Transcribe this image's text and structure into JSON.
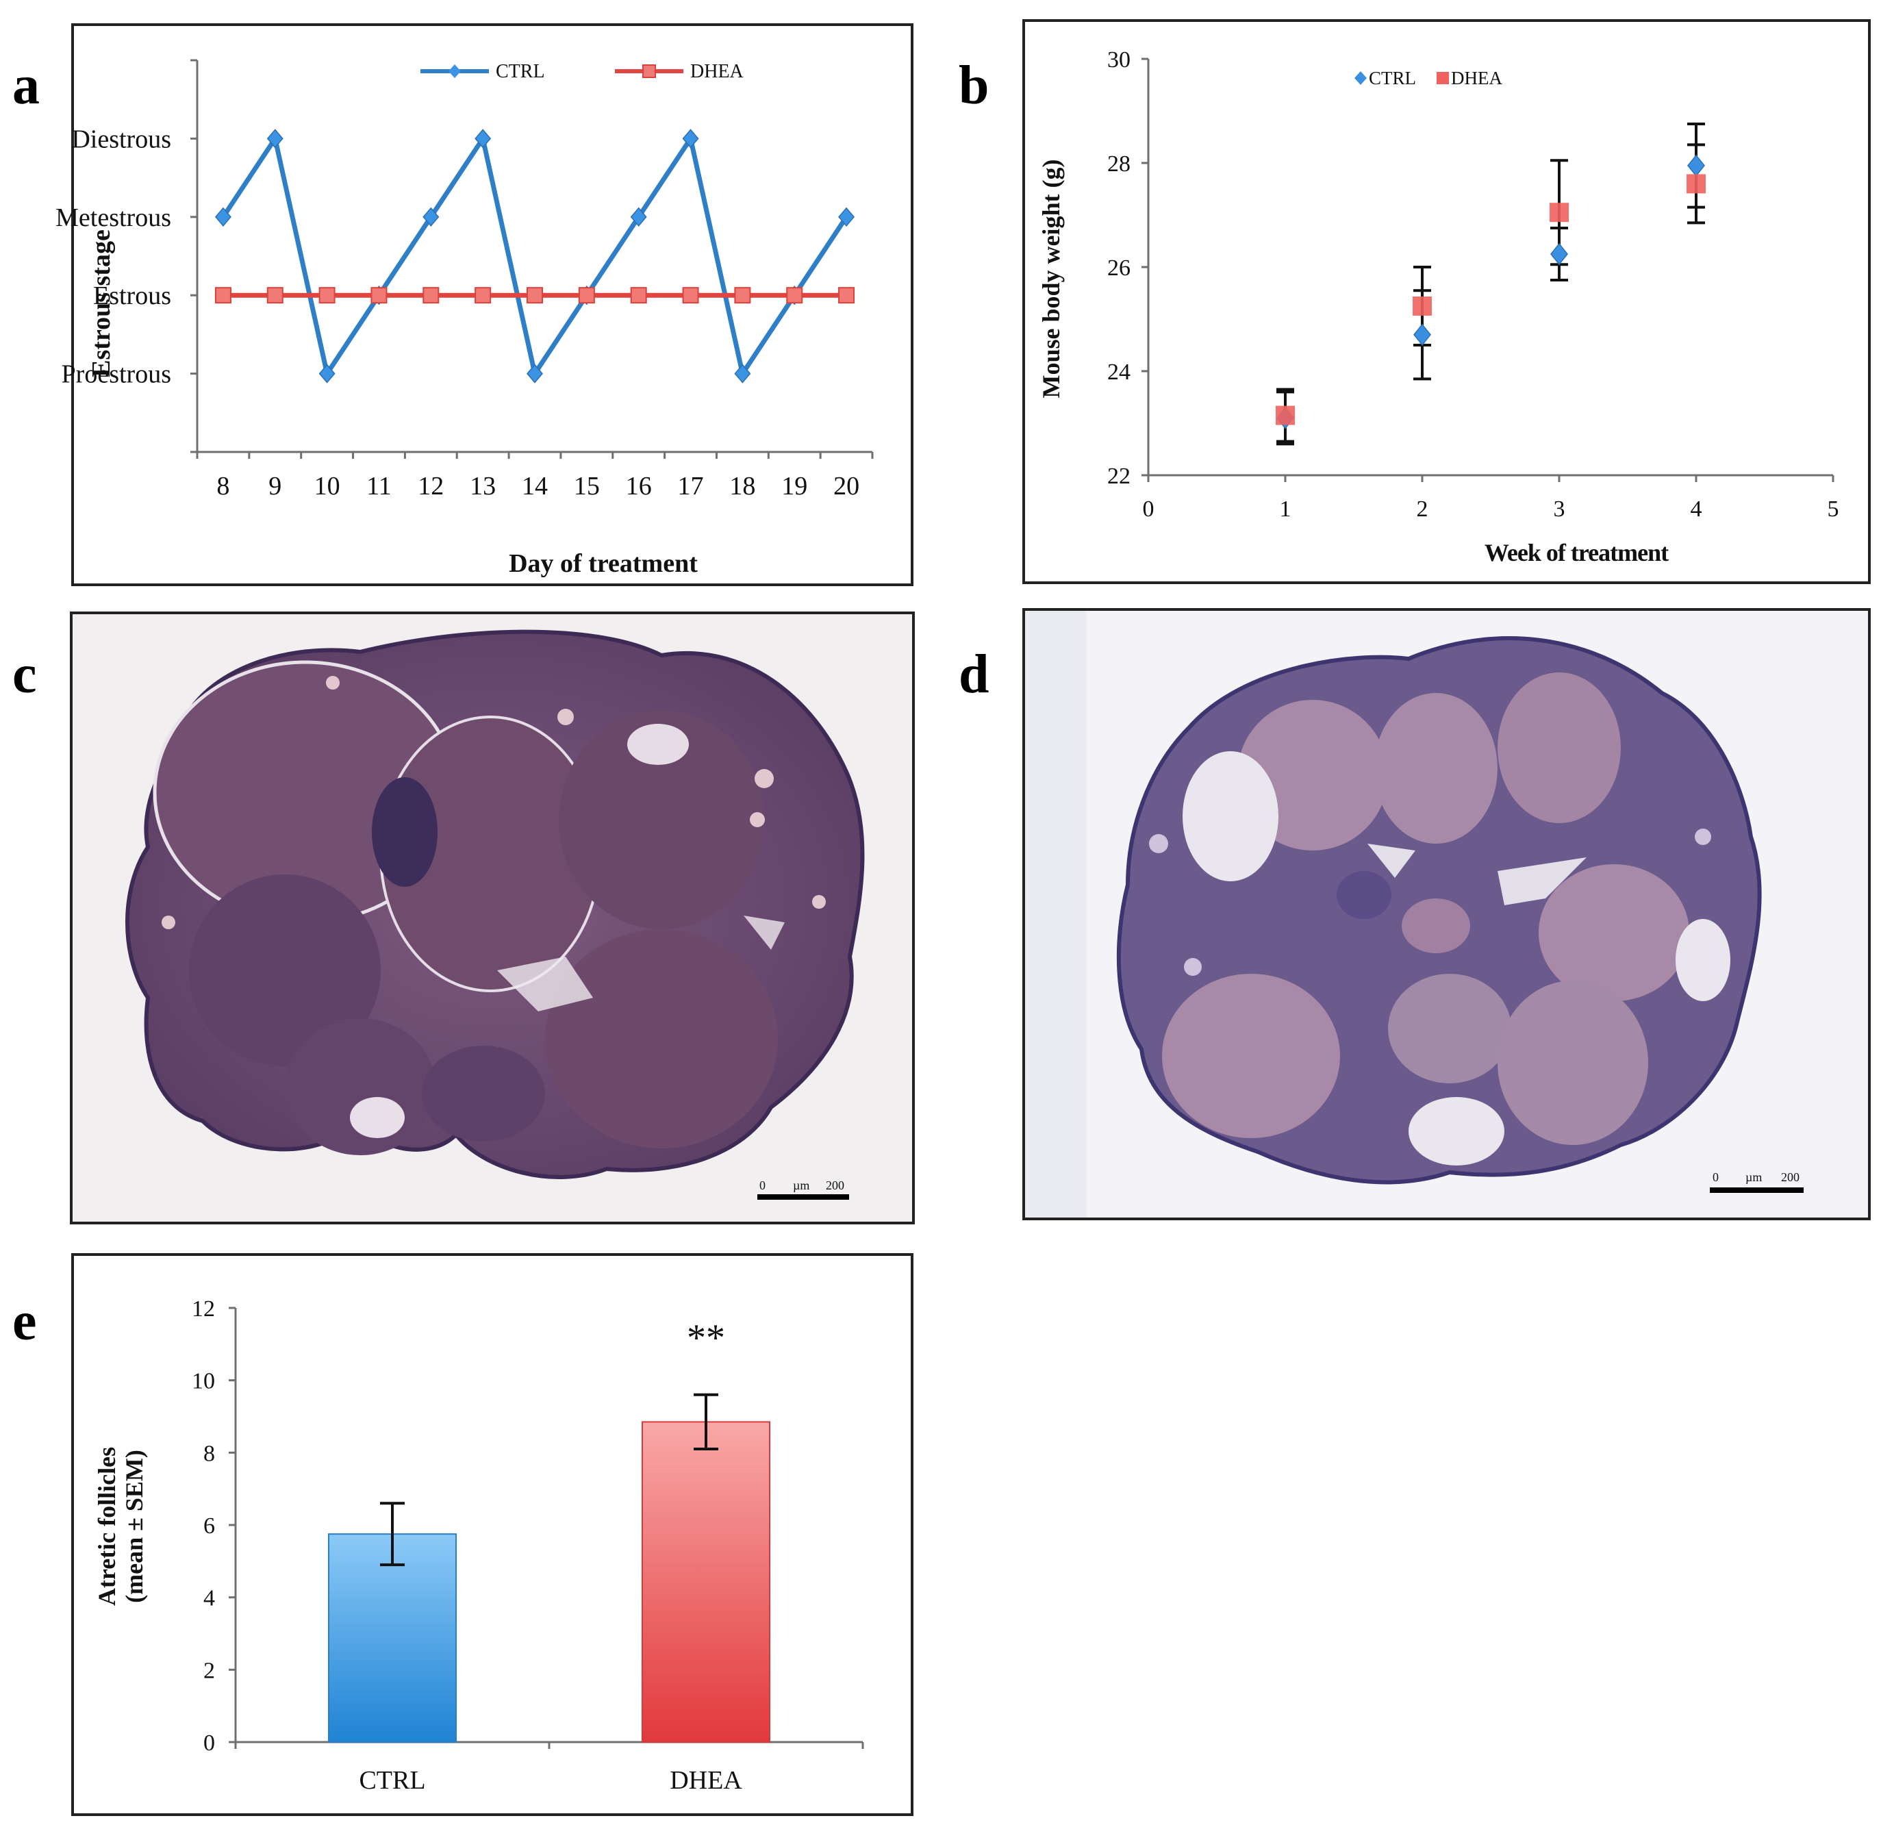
{
  "panels": {
    "a": "a",
    "b": "b",
    "c": "c",
    "d": "d",
    "e": "e"
  },
  "colors": {
    "ctrl": "#2f7fc8",
    "dhea": "#e0453f",
    "ctrl_light": "#7cc0f5",
    "dhea_light": "#f59a9a",
    "axis": "#6f6f6f",
    "error": "#111111"
  },
  "chart_data": [
    {
      "id": "a",
      "type": "line",
      "title": "",
      "xlabel": "Day of treatment",
      "ylabel": "Estrous stage",
      "categories": [
        "8",
        "9",
        "10",
        "11",
        "12",
        "13",
        "14",
        "15",
        "16",
        "17",
        "18",
        "19",
        "20"
      ],
      "y_categories": [
        "Proestrous",
        "Estrous",
        "Metestrous",
        "Diestrous"
      ],
      "ylim": [
        0,
        5
      ],
      "legend_position": "top-center",
      "series": [
        {
          "name": "CTRL",
          "values": [
            3,
            4,
            1,
            2,
            3,
            4,
            1,
            2,
            3,
            4,
            1,
            2,
            3
          ]
        },
        {
          "name": "DHEA",
          "values": [
            2,
            2,
            2,
            2,
            2,
            2,
            2,
            2,
            2,
            2,
            2,
            2,
            2
          ]
        }
      ]
    },
    {
      "id": "b",
      "type": "scatter",
      "title": "",
      "xlabel": "Week of treatment",
      "ylabel": "Mouse body weight (g)",
      "xlim": [
        0,
        5
      ],
      "ylim": [
        22,
        30
      ],
      "x_ticks": [
        "0",
        "1",
        "2",
        "3",
        "4",
        "5"
      ],
      "y_ticks": [
        "22",
        "24",
        "26",
        "28",
        "30"
      ],
      "legend_position": "top-left",
      "series": [
        {
          "name": "CTRL",
          "x": [
            1,
            2,
            3,
            4
          ],
          "values": [
            23.1,
            24.7,
            26.25,
            27.95
          ],
          "error": [
            0.5,
            0.85,
            0.5,
            0.8
          ]
        },
        {
          "name": "DHEA",
          "x": [
            1,
            2,
            3,
            4
          ],
          "values": [
            23.15,
            25.25,
            27.05,
            27.6
          ],
          "error": [
            0.5,
            0.75,
            1.0,
            0.75
          ]
        }
      ]
    },
    {
      "id": "e",
      "type": "bar",
      "title": "",
      "xlabel": "",
      "ylabel": "Atretic follicles (mean ± SEM)",
      "ylabel_lines": [
        "Atretic follicles",
        "(mean ± SEM)"
      ],
      "categories": [
        "CTRL",
        "DHEA"
      ],
      "values": [
        5.75,
        8.85
      ],
      "error": [
        0.85,
        0.75
      ],
      "ylim": [
        0,
        12
      ],
      "y_ticks": [
        "0",
        "2",
        "4",
        "6",
        "8",
        "10",
        "12"
      ],
      "annotation": "**"
    }
  ],
  "micrographs": {
    "c": {
      "scale_label_start": "0",
      "scale_label_unit": "µm",
      "scale_label_end": "200"
    },
    "d": {
      "scale_label_start": "0",
      "scale_label_unit": "µm",
      "scale_label_end": "200"
    }
  }
}
